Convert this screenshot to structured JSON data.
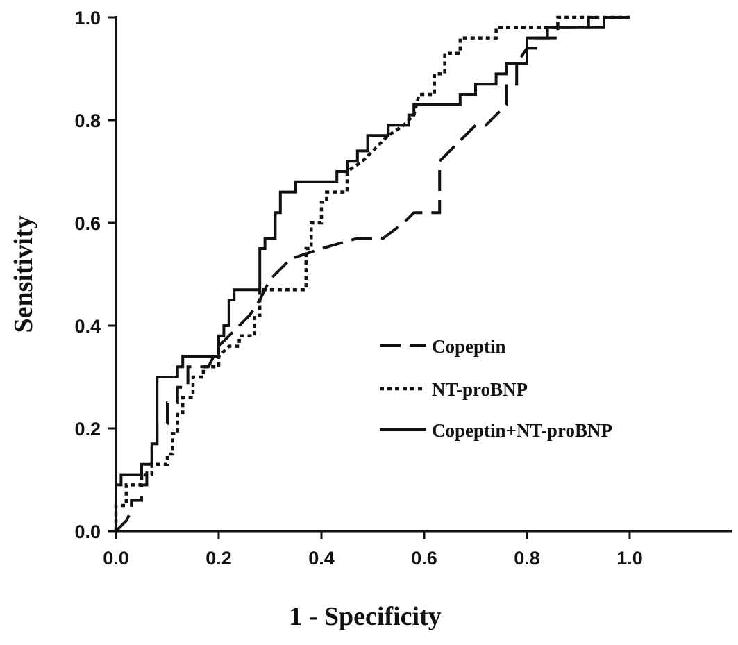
{
  "chart_data": {
    "type": "line",
    "xlabel": "1 - Specificity",
    "ylabel": "Sensitivity",
    "xlim": [
      0,
      1.2
    ],
    "ylim": [
      0,
      1.0
    ],
    "x_ticks": [
      "0.0",
      "0.2",
      "0.4",
      "0.6",
      "0.8",
      "1.0"
    ],
    "y_ticks": [
      "0.0",
      "0.2",
      "0.4",
      "0.6",
      "0.8",
      "1.0"
    ],
    "grid": false,
    "legend_position": "center-right",
    "series": [
      {
        "name": "Copeptin",
        "dash": "dashed",
        "color": "#111111",
        "points": [
          [
            0.0,
            0.0
          ],
          [
            0.02,
            0.02
          ],
          [
            0.03,
            0.04
          ],
          [
            0.03,
            0.06
          ],
          [
            0.05,
            0.06
          ],
          [
            0.05,
            0.09
          ],
          [
            0.06,
            0.09
          ],
          [
            0.06,
            0.13
          ],
          [
            0.07,
            0.13
          ],
          [
            0.07,
            0.17
          ],
          [
            0.08,
            0.17
          ],
          [
            0.08,
            0.21
          ],
          [
            0.1,
            0.21
          ],
          [
            0.1,
            0.25
          ],
          [
            0.12,
            0.25
          ],
          [
            0.12,
            0.28
          ],
          [
            0.14,
            0.28
          ],
          [
            0.14,
            0.32
          ],
          [
            0.18,
            0.32
          ],
          [
            0.2,
            0.36
          ],
          [
            0.22,
            0.38
          ],
          [
            0.24,
            0.4
          ],
          [
            0.26,
            0.42
          ],
          [
            0.28,
            0.45
          ],
          [
            0.3,
            0.49
          ],
          [
            0.34,
            0.53
          ],
          [
            0.4,
            0.55
          ],
          [
            0.47,
            0.57
          ],
          [
            0.52,
            0.57
          ],
          [
            0.56,
            0.6
          ],
          [
            0.58,
            0.62
          ],
          [
            0.63,
            0.62
          ],
          [
            0.63,
            0.72
          ],
          [
            0.66,
            0.75
          ],
          [
            0.7,
            0.79
          ],
          [
            0.72,
            0.79
          ],
          [
            0.76,
            0.83
          ],
          [
            0.76,
            0.87
          ],
          [
            0.78,
            0.87
          ],
          [
            0.78,
            0.91
          ],
          [
            0.8,
            0.94
          ],
          [
            0.82,
            0.94
          ],
          [
            0.82,
            0.96
          ],
          [
            0.86,
            0.96
          ],
          [
            0.86,
            0.98
          ],
          [
            0.92,
            0.98
          ],
          [
            0.92,
            1.0
          ],
          [
            1.0,
            1.0
          ]
        ]
      },
      {
        "name": "NT-proBNP",
        "dash": "dotted",
        "color": "#111111",
        "points": [
          [
            0.0,
            0.0
          ],
          [
            0.0,
            0.05
          ],
          [
            0.02,
            0.05
          ],
          [
            0.02,
            0.09
          ],
          [
            0.05,
            0.09
          ],
          [
            0.05,
            0.11
          ],
          [
            0.07,
            0.11
          ],
          [
            0.07,
            0.13
          ],
          [
            0.1,
            0.13
          ],
          [
            0.1,
            0.15
          ],
          [
            0.11,
            0.15
          ],
          [
            0.11,
            0.19
          ],
          [
            0.12,
            0.19
          ],
          [
            0.12,
            0.23
          ],
          [
            0.13,
            0.23
          ],
          [
            0.13,
            0.26
          ],
          [
            0.15,
            0.26
          ],
          [
            0.15,
            0.3
          ],
          [
            0.17,
            0.3
          ],
          [
            0.17,
            0.32
          ],
          [
            0.2,
            0.32
          ],
          [
            0.2,
            0.34
          ],
          [
            0.22,
            0.36
          ],
          [
            0.24,
            0.36
          ],
          [
            0.24,
            0.38
          ],
          [
            0.27,
            0.38
          ],
          [
            0.27,
            0.42
          ],
          [
            0.28,
            0.42
          ],
          [
            0.28,
            0.47
          ],
          [
            0.37,
            0.47
          ],
          [
            0.37,
            0.55
          ],
          [
            0.38,
            0.55
          ],
          [
            0.38,
            0.6
          ],
          [
            0.4,
            0.6
          ],
          [
            0.4,
            0.64
          ],
          [
            0.41,
            0.64
          ],
          [
            0.41,
            0.66
          ],
          [
            0.45,
            0.66
          ],
          [
            0.45,
            0.7
          ],
          [
            0.48,
            0.72
          ],
          [
            0.5,
            0.74
          ],
          [
            0.53,
            0.77
          ],
          [
            0.56,
            0.79
          ],
          [
            0.58,
            0.81
          ],
          [
            0.59,
            0.85
          ],
          [
            0.62,
            0.85
          ],
          [
            0.62,
            0.89
          ],
          [
            0.64,
            0.89
          ],
          [
            0.64,
            0.93
          ],
          [
            0.67,
            0.93
          ],
          [
            0.67,
            0.96
          ],
          [
            0.74,
            0.96
          ],
          [
            0.74,
            0.98
          ],
          [
            0.86,
            0.98
          ],
          [
            0.86,
            1.0
          ],
          [
            1.0,
            1.0
          ]
        ]
      },
      {
        "name": "Copeptin+NT-proBNP",
        "dash": "solid",
        "color": "#111111",
        "points": [
          [
            0.0,
            0.0
          ],
          [
            0.0,
            0.09
          ],
          [
            0.01,
            0.09
          ],
          [
            0.01,
            0.11
          ],
          [
            0.05,
            0.11
          ],
          [
            0.05,
            0.13
          ],
          [
            0.07,
            0.13
          ],
          [
            0.07,
            0.17
          ],
          [
            0.08,
            0.17
          ],
          [
            0.08,
            0.3
          ],
          [
            0.12,
            0.3
          ],
          [
            0.12,
            0.32
          ],
          [
            0.13,
            0.32
          ],
          [
            0.13,
            0.34
          ],
          [
            0.2,
            0.34
          ],
          [
            0.2,
            0.38
          ],
          [
            0.21,
            0.38
          ],
          [
            0.21,
            0.4
          ],
          [
            0.22,
            0.4
          ],
          [
            0.22,
            0.45
          ],
          [
            0.23,
            0.45
          ],
          [
            0.23,
            0.47
          ],
          [
            0.28,
            0.47
          ],
          [
            0.28,
            0.55
          ],
          [
            0.29,
            0.55
          ],
          [
            0.29,
            0.57
          ],
          [
            0.31,
            0.57
          ],
          [
            0.31,
            0.62
          ],
          [
            0.32,
            0.62
          ],
          [
            0.32,
            0.66
          ],
          [
            0.35,
            0.66
          ],
          [
            0.35,
            0.68
          ],
          [
            0.43,
            0.68
          ],
          [
            0.43,
            0.7
          ],
          [
            0.45,
            0.7
          ],
          [
            0.45,
            0.72
          ],
          [
            0.47,
            0.72
          ],
          [
            0.47,
            0.74
          ],
          [
            0.49,
            0.74
          ],
          [
            0.49,
            0.77
          ],
          [
            0.53,
            0.77
          ],
          [
            0.53,
            0.79
          ],
          [
            0.57,
            0.79
          ],
          [
            0.57,
            0.81
          ],
          [
            0.58,
            0.81
          ],
          [
            0.58,
            0.83
          ],
          [
            0.67,
            0.83
          ],
          [
            0.67,
            0.85
          ],
          [
            0.7,
            0.85
          ],
          [
            0.7,
            0.87
          ],
          [
            0.74,
            0.87
          ],
          [
            0.74,
            0.89
          ],
          [
            0.76,
            0.89
          ],
          [
            0.76,
            0.91
          ],
          [
            0.8,
            0.91
          ],
          [
            0.8,
            0.96
          ],
          [
            0.84,
            0.96
          ],
          [
            0.84,
            0.98
          ],
          [
            0.95,
            0.98
          ],
          [
            0.95,
            1.0
          ],
          [
            1.0,
            1.0
          ]
        ]
      }
    ]
  }
}
